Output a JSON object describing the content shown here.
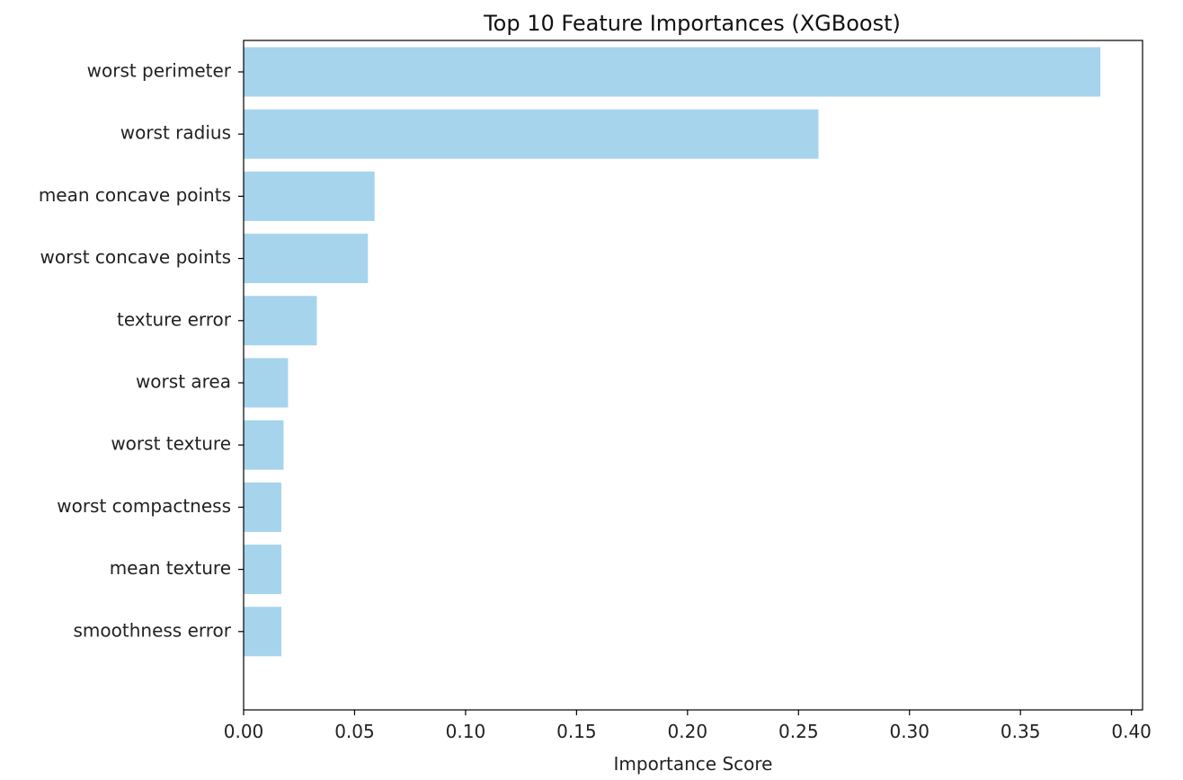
{
  "chart_data": {
    "type": "bar",
    "orientation": "horizontal",
    "title": "Top 10 Feature Importances (XGBoost)",
    "xlabel": "Importance Score",
    "ylabel": "",
    "xlim": [
      0.0,
      0.405
    ],
    "x_ticks": [
      "0.00",
      "0.05",
      "0.10",
      "0.15",
      "0.20",
      "0.25",
      "0.30",
      "0.35",
      "0.40"
    ],
    "grid": false,
    "legend": "none",
    "bar_color": "#a6d4ec",
    "categories": [
      "worst perimeter",
      "worst radius",
      "mean concave points",
      "worst concave points",
      "texture error",
      "worst area",
      "worst texture",
      "worst compactness",
      "mean texture",
      "smoothness error"
    ],
    "values": [
      0.386,
      0.259,
      0.059,
      0.056,
      0.033,
      0.02,
      0.018,
      0.017,
      0.017,
      0.017
    ]
  }
}
